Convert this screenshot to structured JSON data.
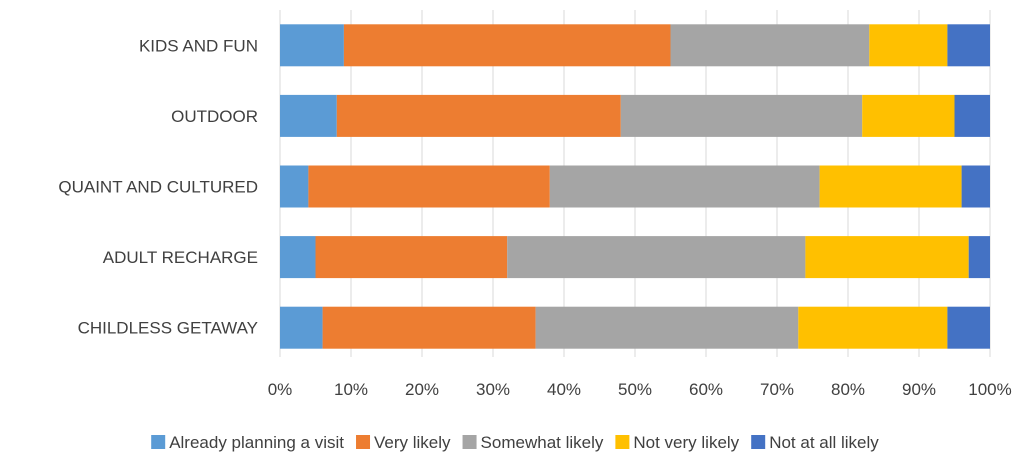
{
  "chart_data": {
    "type": "bar",
    "orientation": "horizontal",
    "stacked": true,
    "percent_stacked": true,
    "categories": [
      "KIDS AND FUN",
      "OUTDOOR",
      "QUAINT AND CULTURED",
      "ADULT RECHARGE",
      "CHILDLESS GETAWAY"
    ],
    "series": [
      {
        "name": "Already planning a visit",
        "color": "#5B9BD5",
        "values": [
          9,
          8,
          4,
          5,
          6
        ]
      },
      {
        "name": "Very likely",
        "color": "#ED7D31",
        "values": [
          46,
          40,
          34,
          27,
          30
        ]
      },
      {
        "name": "Somewhat likely",
        "color": "#A5A5A5",
        "values": [
          28,
          34,
          38,
          42,
          37
        ]
      },
      {
        "name": "Not very likely",
        "color": "#FFC000",
        "values": [
          11,
          13,
          20,
          23,
          21
        ]
      },
      {
        "name": "Not at all likely",
        "color": "#4472C4",
        "values": [
          6,
          5,
          4,
          3,
          6
        ]
      }
    ],
    "x_ticks": [
      "0%",
      "10%",
      "20%",
      "30%",
      "40%",
      "50%",
      "60%",
      "70%",
      "80%",
      "90%",
      "100%"
    ],
    "xlim": [
      0,
      100
    ],
    "grid": "vertical",
    "legend_position": "bottom"
  }
}
